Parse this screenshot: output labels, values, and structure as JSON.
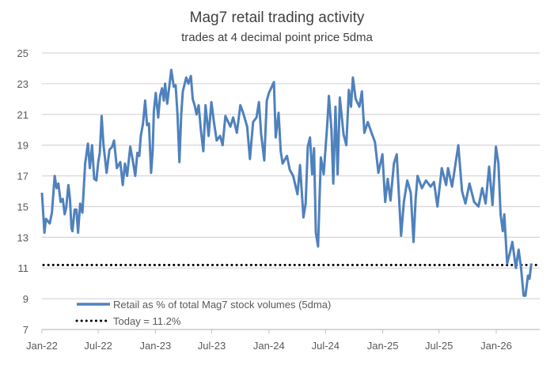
{
  "chart_data": {
    "type": "line",
    "title": "Mag7 retail trading activity",
    "subtitle": "trades at 4 decimal point price 5dma",
    "xlabel": "",
    "ylabel": "",
    "ylim": [
      7,
      25
    ],
    "yticks": [
      "25",
      "23",
      "21",
      "19",
      "17",
      "15",
      "13",
      "11",
      "9",
      "7"
    ],
    "xticks": [
      {
        "label": "Jan-22",
        "date": "2022-01-01"
      },
      {
        "label": "Jul-22",
        "date": "2022-07-01"
      },
      {
        "label": "Jan-23",
        "date": "2023-01-01"
      },
      {
        "label": "Jul-23",
        "date": "2023-07-01"
      },
      {
        "label": "Jan-24",
        "date": "2024-01-01"
      },
      {
        "label": "Jul-24",
        "date": "2024-07-01"
      },
      {
        "label": "Jan-25",
        "date": "2025-01-01"
      },
      {
        "label": "Jul-25",
        "date": "2025-07-01"
      },
      {
        "label": "Jan-26",
        "date": "2026-01-01"
      }
    ],
    "grid": true,
    "legend_position": "bottom-left",
    "colors": {
      "series": "#4f81bd",
      "today": "#000000",
      "grid": "#d9d9d9",
      "text": "#595959"
    },
    "series": [
      {
        "name": "Retail as % of total Mag7 stock volumes (5dma)",
        "style": "solid",
        "points": [
          [
            "2022-01-01",
            15.9
          ],
          [
            "2022-01-09",
            13.3
          ],
          [
            "2022-01-14",
            14.2
          ],
          [
            "2022-01-26",
            13.9
          ],
          [
            "2022-02-02",
            14.6
          ],
          [
            "2022-02-11",
            17.0
          ],
          [
            "2022-02-17",
            16.2
          ],
          [
            "2022-02-23",
            16.5
          ],
          [
            "2022-03-02",
            15.3
          ],
          [
            "2022-03-09",
            15.5
          ],
          [
            "2022-03-15",
            14.5
          ],
          [
            "2022-03-20",
            14.9
          ],
          [
            "2022-03-27",
            16.4
          ],
          [
            "2022-04-01",
            15.5
          ],
          [
            "2022-04-06",
            13.6
          ],
          [
            "2022-04-09",
            13.4
          ],
          [
            "2022-04-16",
            14.8
          ],
          [
            "2022-04-22",
            14.8
          ],
          [
            "2022-04-27",
            13.3
          ],
          [
            "2022-05-04",
            15.2
          ],
          [
            "2022-05-11",
            14.6
          ],
          [
            "2022-05-20",
            17.8
          ],
          [
            "2022-05-29",
            19.1
          ],
          [
            "2022-06-04",
            17.5
          ],
          [
            "2022-06-11",
            19.0
          ],
          [
            "2022-06-18",
            16.8
          ],
          [
            "2022-06-25",
            16.7
          ],
          [
            "2022-07-01",
            17.9
          ],
          [
            "2022-07-06",
            18.5
          ],
          [
            "2022-07-12",
            20.9
          ],
          [
            "2022-07-18",
            19.0
          ],
          [
            "2022-07-28",
            17.2
          ],
          [
            "2022-08-06",
            18.7
          ],
          [
            "2022-08-15",
            18.9
          ],
          [
            "2022-08-21",
            19.3
          ],
          [
            "2022-08-30",
            17.5
          ],
          [
            "2022-09-10",
            17.9
          ],
          [
            "2022-09-18",
            16.4
          ],
          [
            "2022-09-25",
            17.8
          ],
          [
            "2022-10-02",
            17.0
          ],
          [
            "2022-10-12",
            18.9
          ],
          [
            "2022-10-21",
            17.9
          ],
          [
            "2022-10-28",
            17.0
          ],
          [
            "2022-11-04",
            18.5
          ],
          [
            "2022-11-10",
            18.3
          ],
          [
            "2022-11-15",
            19.6
          ],
          [
            "2022-11-22",
            20.4
          ],
          [
            "2022-11-29",
            21.9
          ],
          [
            "2022-12-05",
            20.3
          ],
          [
            "2022-12-11",
            20.4
          ],
          [
            "2022-12-18",
            17.2
          ],
          [
            "2022-12-23",
            18.6
          ],
          [
            "2022-12-27",
            21.2
          ],
          [
            "2023-01-02",
            22.4
          ],
          [
            "2023-01-10",
            20.8
          ],
          [
            "2023-01-16",
            22.2
          ],
          [
            "2023-01-22",
            22.7
          ],
          [
            "2023-01-28",
            21.9
          ],
          [
            "2023-02-01",
            23.0
          ],
          [
            "2023-02-08",
            21.7
          ],
          [
            "2023-02-21",
            23.9
          ],
          [
            "2023-03-01",
            22.8
          ],
          [
            "2023-03-07",
            22.9
          ],
          [
            "2023-03-13",
            21.0
          ],
          [
            "2023-03-19",
            17.9
          ],
          [
            "2023-03-25",
            21.0
          ],
          [
            "2023-03-30",
            22.5
          ],
          [
            "2023-04-10",
            23.4
          ],
          [
            "2023-04-17",
            23.0
          ],
          [
            "2023-04-25",
            23.5
          ],
          [
            "2023-05-01",
            22.0
          ],
          [
            "2023-05-07",
            21.6
          ],
          [
            "2023-05-13",
            21.0
          ],
          [
            "2023-05-20",
            21.6
          ],
          [
            "2023-05-27",
            20.0
          ],
          [
            "2023-06-04",
            18.6
          ],
          [
            "2023-06-11",
            21.6
          ],
          [
            "2023-06-21",
            19.6
          ],
          [
            "2023-06-30",
            21.8
          ],
          [
            "2023-07-08",
            20.5
          ],
          [
            "2023-07-17",
            19.3
          ],
          [
            "2023-07-28",
            19.6
          ],
          [
            "2023-08-05",
            19.0
          ],
          [
            "2023-08-14",
            20.9
          ],
          [
            "2023-08-30",
            20.2
          ],
          [
            "2023-09-08",
            20.8
          ],
          [
            "2023-09-20",
            19.8
          ],
          [
            "2023-10-01",
            21.6
          ],
          [
            "2023-10-10",
            21.1
          ],
          [
            "2023-10-23",
            20.2
          ],
          [
            "2023-11-01",
            18.1
          ],
          [
            "2023-11-11",
            20.5
          ],
          [
            "2023-11-22",
            20.8
          ],
          [
            "2023-11-30",
            21.8
          ],
          [
            "2023-12-07",
            19.7
          ],
          [
            "2023-12-17",
            18.0
          ],
          [
            "2023-12-25",
            21.9
          ],
          [
            "2024-01-01",
            22.4
          ],
          [
            "2024-01-17",
            23.1
          ],
          [
            "2024-01-23",
            19.5
          ],
          [
            "2024-02-01",
            21.1
          ],
          [
            "2024-02-08",
            18.6
          ],
          [
            "2024-02-14",
            17.8
          ],
          [
            "2024-02-28",
            18.3
          ],
          [
            "2024-03-08",
            17.4
          ],
          [
            "2024-03-19",
            17.0
          ],
          [
            "2024-04-02",
            15.8
          ],
          [
            "2024-04-10",
            17.7
          ],
          [
            "2024-04-21",
            14.3
          ],
          [
            "2024-04-28",
            15.2
          ],
          [
            "2024-05-05",
            18.9
          ],
          [
            "2024-05-12",
            19.5
          ],
          [
            "2024-05-19",
            17.1
          ],
          [
            "2024-05-25",
            18.8
          ],
          [
            "2024-05-31",
            13.3
          ],
          [
            "2024-06-07",
            12.4
          ],
          [
            "2024-06-16",
            18.2
          ],
          [
            "2024-06-25",
            17.1
          ],
          [
            "2024-07-07",
            20.5
          ],
          [
            "2024-07-12",
            22.2
          ],
          [
            "2024-07-20",
            20.0
          ],
          [
            "2024-07-26",
            16.5
          ],
          [
            "2024-08-02",
            21.5
          ],
          [
            "2024-08-09",
            17.1
          ],
          [
            "2024-08-16",
            22.1
          ],
          [
            "2024-08-28",
            19.7
          ],
          [
            "2024-09-06",
            19.0
          ],
          [
            "2024-09-14",
            22.6
          ],
          [
            "2024-09-21",
            21.5
          ],
          [
            "2024-09-27",
            23.4
          ],
          [
            "2024-10-06",
            22.0
          ],
          [
            "2024-10-18",
            21.5
          ],
          [
            "2024-10-26",
            22.5
          ],
          [
            "2024-11-03",
            19.8
          ],
          [
            "2024-11-14",
            20.5
          ],
          [
            "2024-11-26",
            19.8
          ],
          [
            "2024-12-07",
            19.2
          ],
          [
            "2024-12-18",
            17.2
          ],
          [
            "2024-12-31",
            18.4
          ],
          [
            "2025-01-09",
            15.3
          ],
          [
            "2025-01-17",
            16.8
          ],
          [
            "2025-01-26",
            15.4
          ],
          [
            "2025-02-06",
            17.8
          ],
          [
            "2025-02-15",
            18.4
          ],
          [
            "2025-03-01",
            13.1
          ],
          [
            "2025-03-10",
            15.3
          ],
          [
            "2025-03-21",
            16.7
          ],
          [
            "2025-04-01",
            15.9
          ],
          [
            "2025-04-10",
            12.7
          ],
          [
            "2025-04-17",
            15.5
          ],
          [
            "2025-04-23",
            17.0
          ],
          [
            "2025-05-07",
            16.2
          ],
          [
            "2025-05-20",
            16.7
          ],
          [
            "2025-06-04",
            16.3
          ],
          [
            "2025-06-15",
            16.6
          ],
          [
            "2025-06-26",
            15.0
          ],
          [
            "2025-07-10",
            17.5
          ],
          [
            "2025-07-24",
            16.4
          ],
          [
            "2025-07-30",
            17.5
          ],
          [
            "2025-08-12",
            16.3
          ],
          [
            "2025-09-01",
            19.0
          ],
          [
            "2025-09-13",
            16.0
          ],
          [
            "2025-09-24",
            15.2
          ],
          [
            "2025-10-07",
            16.5
          ],
          [
            "2025-10-22",
            15.3
          ],
          [
            "2025-11-05",
            15.0
          ],
          [
            "2025-11-17",
            16.2
          ],
          [
            "2025-11-28",
            15.2
          ],
          [
            "2025-12-09",
            17.6
          ],
          [
            "2025-12-20",
            15.1
          ],
          [
            "2025-12-31",
            18.9
          ],
          [
            "2026-01-08",
            17.8
          ],
          [
            "2026-01-15",
            14.5
          ],
          [
            "2026-01-22",
            13.4
          ],
          [
            "2026-01-27",
            14.5
          ],
          [
            "2026-02-05",
            11.3
          ],
          [
            "2026-02-14",
            12.0
          ],
          [
            "2026-02-22",
            12.7
          ],
          [
            "2026-03-05",
            11.0
          ],
          [
            "2026-03-14",
            12.2
          ],
          [
            "2026-03-22",
            11.0
          ],
          [
            "2026-03-30",
            9.2
          ],
          [
            "2026-04-05",
            9.2
          ],
          [
            "2026-04-13",
            10.5
          ],
          [
            "2026-04-18",
            10.3
          ],
          [
            "2026-04-24",
            11.3
          ]
        ]
      },
      {
        "name": "Today = 11.2%",
        "style": "dotted",
        "value": 11.2
      }
    ]
  }
}
